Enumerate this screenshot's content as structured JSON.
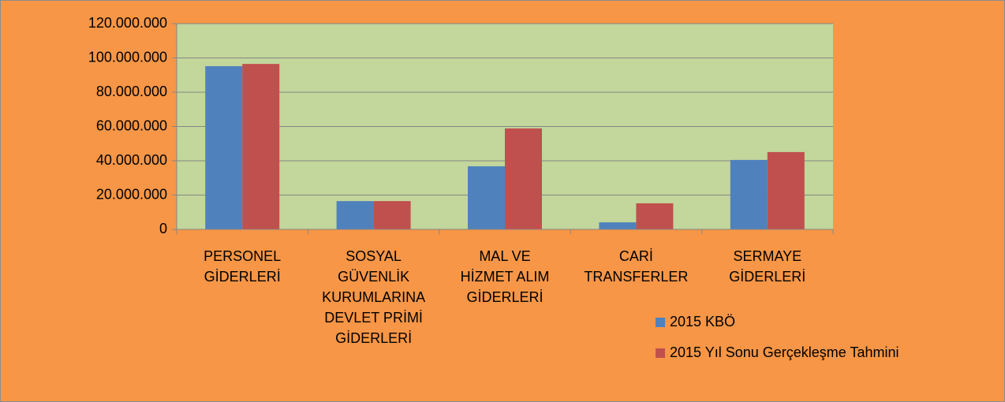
{
  "chart_data": {
    "type": "bar",
    "categories": [
      "PERSONEL\nGİDERLERİ",
      "SOSYAL\nGÜVENLİK\nKURUMLARINA\nDEVLET PRİMİ\nGİDERLERİ",
      "MAL VE\nHİZMET ALIM\nGİDERLERİ",
      "CARİ\nTRANSFERLER",
      "SERMAYE\nGİDERLERİ"
    ],
    "series": [
      {
        "name": "2015 KBÖ",
        "color": "#4f81bd",
        "values": [
          95200000,
          16500000,
          36800000,
          4100000,
          40500000
        ]
      },
      {
        "name": "2015 Yıl Sonu Gerçekleşme Tahmini",
        "color": "#c0504d",
        "values": [
          96500000,
          16500000,
          58900000,
          15200000,
          45100000
        ]
      }
    ],
    "ylim": [
      0,
      120000000
    ],
    "yticks": [
      0,
      {
        "value": 20000000,
        "label": "20.000.000"
      },
      {
        "value": 40000000,
        "label": "40.000.000"
      },
      {
        "value": 60000000,
        "label": "60.000.000"
      },
      {
        "value": 80000000,
        "label": "80.000.000"
      },
      {
        "value": 100000000,
        "label": "100.000.000"
      },
      {
        "value": 120000000,
        "label": "120.000.000"
      }
    ],
    "grid": true,
    "legend": "right"
  }
}
